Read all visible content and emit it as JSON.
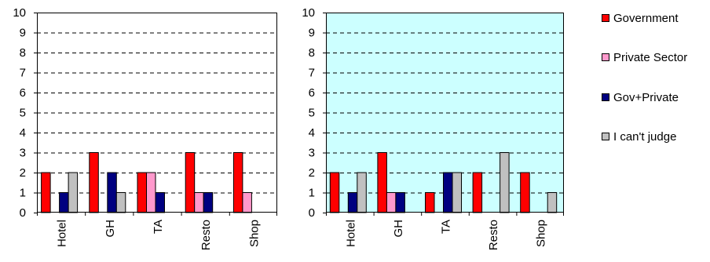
{
  "chart_data": [
    {
      "type": "bar",
      "categories": [
        "Hotel",
        "GH",
        "TA",
        "Resto",
        "Shop"
      ],
      "series": [
        {
          "name": "Government",
          "values": [
            2,
            3,
            2,
            3,
            3
          ]
        },
        {
          "name": "Private Sector",
          "values": [
            0,
            0,
            2,
            1,
            1
          ]
        },
        {
          "name": "Gov+Private",
          "values": [
            1,
            2,
            1,
            1,
            0
          ]
        },
        {
          "name": "I can't judge",
          "values": [
            2,
            1,
            0,
            0,
            0
          ]
        }
      ],
      "ylim": [
        0,
        10
      ],
      "yticks": [
        "0",
        "1",
        "2",
        "3",
        "4",
        "5",
        "6",
        "7",
        "8",
        "9",
        "10"
      ],
      "grid": true,
      "plot_background": "#ffffff"
    },
    {
      "type": "bar",
      "categories": [
        "Hotel",
        "GH",
        "TA",
        "Resto",
        "Shop"
      ],
      "series": [
        {
          "name": "Government",
          "values": [
            2,
            3,
            1,
            2,
            2
          ]
        },
        {
          "name": "Private Sector",
          "values": [
            0,
            1,
            0,
            0,
            0
          ]
        },
        {
          "name": "Gov+Private",
          "values": [
            1,
            1,
            2,
            0,
            0
          ]
        },
        {
          "name": "I can't judge",
          "values": [
            2,
            0,
            2,
            3,
            1
          ]
        }
      ],
      "ylim": [
        0,
        10
      ],
      "yticks": [
        "0",
        "1",
        "2",
        "3",
        "4",
        "5",
        "6",
        "7",
        "8",
        "9",
        "10"
      ],
      "grid": true,
      "plot_background": "#ccffff"
    }
  ],
  "legend": {
    "placement": "right",
    "items": [
      {
        "label": "Government",
        "color": "#ff0000"
      },
      {
        "label": "Private Sector",
        "color": "#ff99cc"
      },
      {
        "label": "Gov+Private",
        "color": "#000080"
      },
      {
        "label": "I can't judge",
        "color": "#c0c0c0"
      }
    ]
  }
}
